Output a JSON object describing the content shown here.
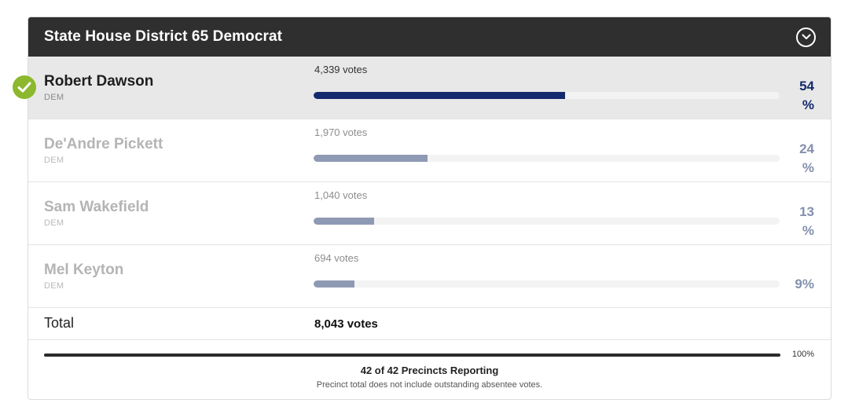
{
  "race": {
    "title": "State House District 65 Democrat",
    "collapse_icon": "chevron-down-circle-icon"
  },
  "candidates": [
    {
      "name": "Robert Dawson",
      "party": "DEM",
      "votes": "4,339 votes",
      "pct_number": "54",
      "pct_sign": "%",
      "share": 0.54,
      "winner": true
    },
    {
      "name": "De'Andre Pickett",
      "party": "DEM",
      "votes": "1,970 votes",
      "pct_number": "24",
      "pct_sign": "%",
      "share": 0.245,
      "winner": false
    },
    {
      "name": "Sam Wakefield",
      "party": "DEM",
      "votes": "1,040 votes",
      "pct_number": "13",
      "pct_sign": "%",
      "share": 0.13,
      "winner": false
    },
    {
      "name": "Mel Keyton",
      "party": "DEM",
      "votes": "694 votes",
      "pct_full": "9%",
      "share": 0.087,
      "winner": false
    }
  ],
  "total": {
    "label": "Total",
    "votes": "8,043 votes"
  },
  "reporting": {
    "fraction": 1.0,
    "percent_label": "100%",
    "text": "42 of 42 Precincts Reporting",
    "note": "Precinct total does not include outstanding absentee votes."
  },
  "colors": {
    "header_bg": "#2f2f2f",
    "winner_bar": "#132a6d",
    "other_bar": "#8e9ab4",
    "winner_check": "#8cb82d"
  }
}
